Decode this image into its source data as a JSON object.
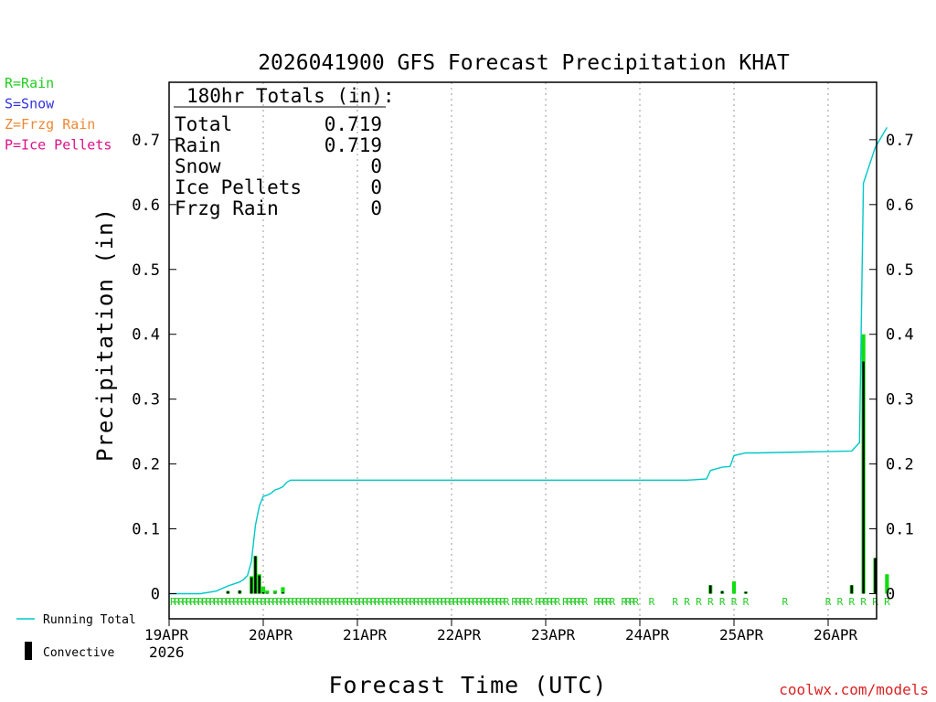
{
  "chart_data": {
    "type": "bar",
    "title": "2026041900 GFS Forecast Precipitation KHAT",
    "xlabel": "Forecast Time (UTC)",
    "ylabel": "Precipitation (in)",
    "ylim": [
      0,
      0.79
    ],
    "y_ticks": [
      0,
      0.1,
      0.2,
      0.3,
      0.4,
      0.5,
      0.6,
      0.7
    ],
    "y_tick_labels": [
      "0",
      "0.1",
      "0.2",
      "0.3",
      "0.4",
      "0.5",
      "0.6",
      "0.7"
    ],
    "xlim_hours": [
      0,
      183
    ],
    "x_ticks": [
      {
        "hour": 0,
        "label": "19APR",
        "sublabel": "2026"
      },
      {
        "hour": 24,
        "label": "20APR"
      },
      {
        "hour": 48,
        "label": "21APR"
      },
      {
        "hour": 72,
        "label": "22APR"
      },
      {
        "hour": 96,
        "label": "23APR"
      },
      {
        "hour": 120,
        "label": "24APR"
      },
      {
        "hour": 144,
        "label": "25APR"
      },
      {
        "hour": 168,
        "label": "26APR"
      }
    ],
    "precip_type_legend": [
      {
        "label": "R=Rain",
        "color": "#22cc22"
      },
      {
        "label": "S=Snow",
        "color": "#3333dd"
      },
      {
        "label": "Z=Frzg Rain",
        "color": "#ee8833"
      },
      {
        "label": "P=Ice Pellets",
        "color": "#dd1188"
      }
    ],
    "series_legend": {
      "running_total": {
        "label": "Running Total",
        "color": "#00c8c8"
      },
      "convective": {
        "label": "Convective",
        "color": "#000000"
      }
    },
    "rain_color": "#11dd11",
    "totals": {
      "heading": "180hr Totals (in):",
      "rows": [
        {
          "label": "Total",
          "value": "0.719"
        },
        {
          "label": "Rain",
          "value": "0.719"
        },
        {
          "label": "Snow",
          "value": "0"
        },
        {
          "label": "Ice Pellets",
          "value": "0"
        },
        {
          "label": "Frzg Rain",
          "value": "0"
        }
      ]
    },
    "precip_bars": [
      {
        "hour": 15,
        "total": 0.004,
        "convective": 0.004
      },
      {
        "hour": 18,
        "total": 0.005,
        "convective": 0.005
      },
      {
        "hour": 21,
        "total": 0.027,
        "convective": 0.025
      },
      {
        "hour": 22,
        "total": 0.058,
        "convective": 0.058
      },
      {
        "hour": 23,
        "total": 0.03,
        "convective": 0.028
      },
      {
        "hour": 24,
        "total": 0.011,
        "convective": 0.002
      },
      {
        "hour": 25,
        "total": 0.005,
        "convective": 0.001
      },
      {
        "hour": 27,
        "total": 0.005,
        "convective": 0.001
      },
      {
        "hour": 29,
        "total": 0.01,
        "convective": 0.002
      },
      {
        "hour": 138,
        "total": 0.013,
        "convective": 0.013
      },
      {
        "hour": 141,
        "total": 0.004,
        "convective": 0.004
      },
      {
        "hour": 144,
        "total": 0.019,
        "convective": 0.0
      },
      {
        "hour": 147,
        "total": 0.003,
        "convective": 0.003
      },
      {
        "hour": 174,
        "total": 0.013,
        "convective": 0.013
      },
      {
        "hour": 177,
        "total": 0.4,
        "convective": 0.358
      },
      {
        "hour": 180,
        "total": 0.055,
        "convective": 0.055
      },
      {
        "hour": 183,
        "total": 0.03,
        "convective": 0.0
      }
    ],
    "running_total": {
      "hours": [
        0,
        8,
        12,
        15,
        18,
        19,
        20,
        21,
        22,
        23,
        24,
        25,
        26,
        27,
        28,
        29,
        30,
        31,
        66,
        96,
        132,
        135,
        137,
        138,
        141,
        143,
        144,
        147,
        150,
        174,
        176,
        177,
        180,
        183
      ],
      "values": [
        0,
        0,
        0.004,
        0.012,
        0.018,
        0.022,
        0.028,
        0.05,
        0.105,
        0.135,
        0.15,
        0.152,
        0.155,
        0.16,
        0.162,
        0.165,
        0.172,
        0.175,
        0.175,
        0.175,
        0.175,
        0.176,
        0.177,
        0.19,
        0.195,
        0.196,
        0.213,
        0.217,
        0.217,
        0.22,
        0.233,
        0.633,
        0.688,
        0.719
      ]
    },
    "rain_marker": "R",
    "rain_marker_hours": [
      0,
      1,
      2,
      3,
      4,
      5,
      6,
      7,
      8,
      9,
      10,
      11,
      12,
      13,
      14,
      15,
      16,
      17,
      18,
      19,
      20,
      21,
      22,
      23,
      24,
      25,
      26,
      27,
      28,
      29,
      30,
      31,
      32,
      33,
      34,
      35,
      36,
      37,
      38,
      39,
      40,
      41,
      42,
      43,
      44,
      45,
      46,
      47,
      48,
      49,
      50,
      51,
      52,
      53,
      54,
      55,
      56,
      57,
      58,
      59,
      60,
      61,
      62,
      63,
      64,
      65,
      66,
      67,
      68,
      69,
      70,
      71,
      72,
      73,
      74,
      75,
      76,
      77,
      78,
      79,
      80,
      81,
      82,
      83,
      84,
      85,
      87,
      88,
      89,
      90,
      91,
      93,
      94,
      95,
      96,
      97,
      98,
      100,
      101,
      102,
      103,
      104,
      105,
      108,
      109,
      110,
      111,
      112,
      115,
      116,
      117,
      118,
      122,
      128,
      131,
      134,
      137,
      140,
      143,
      146,
      156,
      167,
      170,
      173,
      176,
      179,
      182
    ]
  },
  "credit": "coolwx.com/models"
}
